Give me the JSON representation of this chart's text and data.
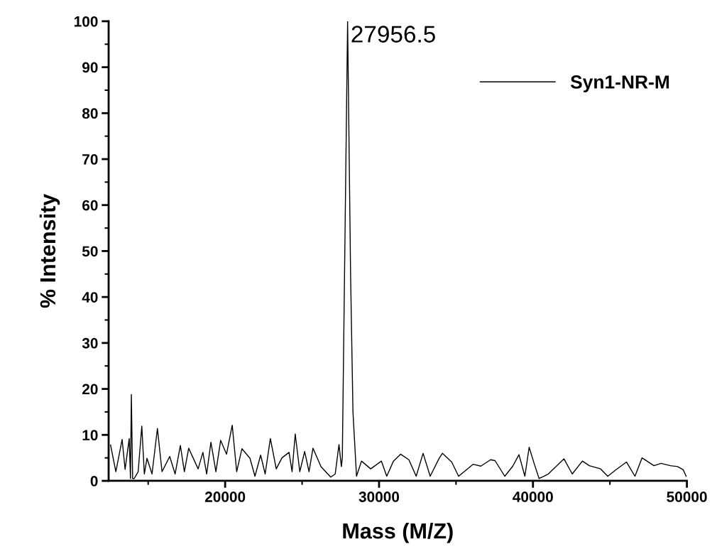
{
  "chart_data": {
    "type": "line",
    "xlabel": "Mass (M/Z)",
    "ylabel": "% Intensity",
    "series": [
      {
        "name": "Syn1-NR-M",
        "color": "#000000",
        "x": [
          12555,
          12900,
          13307,
          13500,
          13768,
          13850,
          13907,
          13990,
          14091,
          14350,
          14585,
          14750,
          14922,
          15250,
          15600,
          15900,
          16399,
          16750,
          17091,
          17350,
          17631,
          18245,
          18554,
          18800,
          19076,
          19400,
          19708,
          20091,
          20460,
          20750,
          21092,
          21614,
          21937,
          22306,
          22600,
          22938,
          23321,
          23691,
          24152,
          24350,
          24554,
          24850,
          25167,
          25450,
          25707,
          26229,
          26861,
          27152,
          27396,
          27553,
          27613,
          27956.5,
          28150,
          28305,
          28536,
          28859,
          29459,
          30152,
          30500,
          30936,
          31398,
          31937,
          32413,
          32861,
          33322,
          33890,
          34121,
          34720,
          35168,
          36105,
          36613,
          37245,
          37536,
          38168,
          38689,
          39091,
          39474,
          39751,
          40074,
          40397,
          40997,
          42012,
          42552,
          43212,
          43660,
          44398,
          44860,
          45381,
          46073,
          46627,
          47089,
          47859,
          48321,
          48935,
          49396,
          49765,
          49950
        ],
        "values": [
          7.8,
          2.0,
          9.0,
          2.5,
          9.2,
          0.5,
          18.8,
          0.5,
          0.5,
          2.0,
          11.9,
          1.5,
          4.9,
          1.5,
          11.4,
          2.0,
          5.3,
          1.5,
          7.7,
          2.0,
          7.1,
          2.6,
          6.2,
          1.5,
          8.4,
          2.0,
          8.8,
          5.8,
          12.1,
          2.0,
          7.0,
          4.9,
          1.0,
          5.6,
          1.5,
          9.2,
          2.6,
          5.0,
          6.2,
          2.0,
          10.2,
          2.0,
          6.4,
          2.0,
          7.1,
          3.1,
          0.8,
          1.5,
          7.9,
          3.1,
          5.0,
          100,
          45,
          15,
          1.0,
          4.3,
          2.6,
          4.3,
          1.0,
          4.3,
          5.8,
          4.6,
          1.0,
          6.0,
          1.0,
          4.8,
          6.0,
          4.1,
          1.0,
          3.6,
          3.2,
          4.6,
          4.4,
          1.0,
          3.2,
          5.7,
          1.0,
          7.3,
          3.8,
          0.5,
          1.5,
          4.8,
          1.5,
          4.3,
          3.3,
          2.6,
          1.0,
          2.4,
          4.1,
          1.0,
          5.0,
          3.3,
          3.8,
          3.3,
          3.1,
          2.4,
          1.0
        ]
      }
    ],
    "xlim": [
      12430,
      50000
    ],
    "xticks": [
      {
        "value": 15000,
        "label": null
      },
      20000,
      {
        "value": 25000,
        "label": null
      },
      30000,
      {
        "value": 35000,
        "label": null
      },
      40000,
      {
        "value": 45000,
        "label": null
      },
      50000
    ],
    "ylim": [
      0,
      100
    ],
    "yticks": [
      0,
      {
        "value": 5,
        "label": null
      },
      10,
      {
        "value": 15,
        "label": null
      },
      20,
      {
        "value": 25,
        "label": null
      },
      30,
      {
        "value": 35,
        "label": null
      },
      40,
      {
        "value": 45,
        "label": null
      },
      50,
      {
        "value": 55,
        "label": null
      },
      60,
      {
        "value": 65,
        "label": null
      },
      70,
      {
        "value": 75,
        "label": null
      },
      80,
      {
        "value": 85,
        "label": null
      },
      90,
      {
        "value": 95,
        "label": null
      },
      100
    ],
    "annotations": [
      {
        "text": "27956.5",
        "x": 27956.5,
        "y": 100
      }
    ],
    "legend": "top right",
    "grid": false,
    "marker": "none",
    "line_style": "solid"
  }
}
